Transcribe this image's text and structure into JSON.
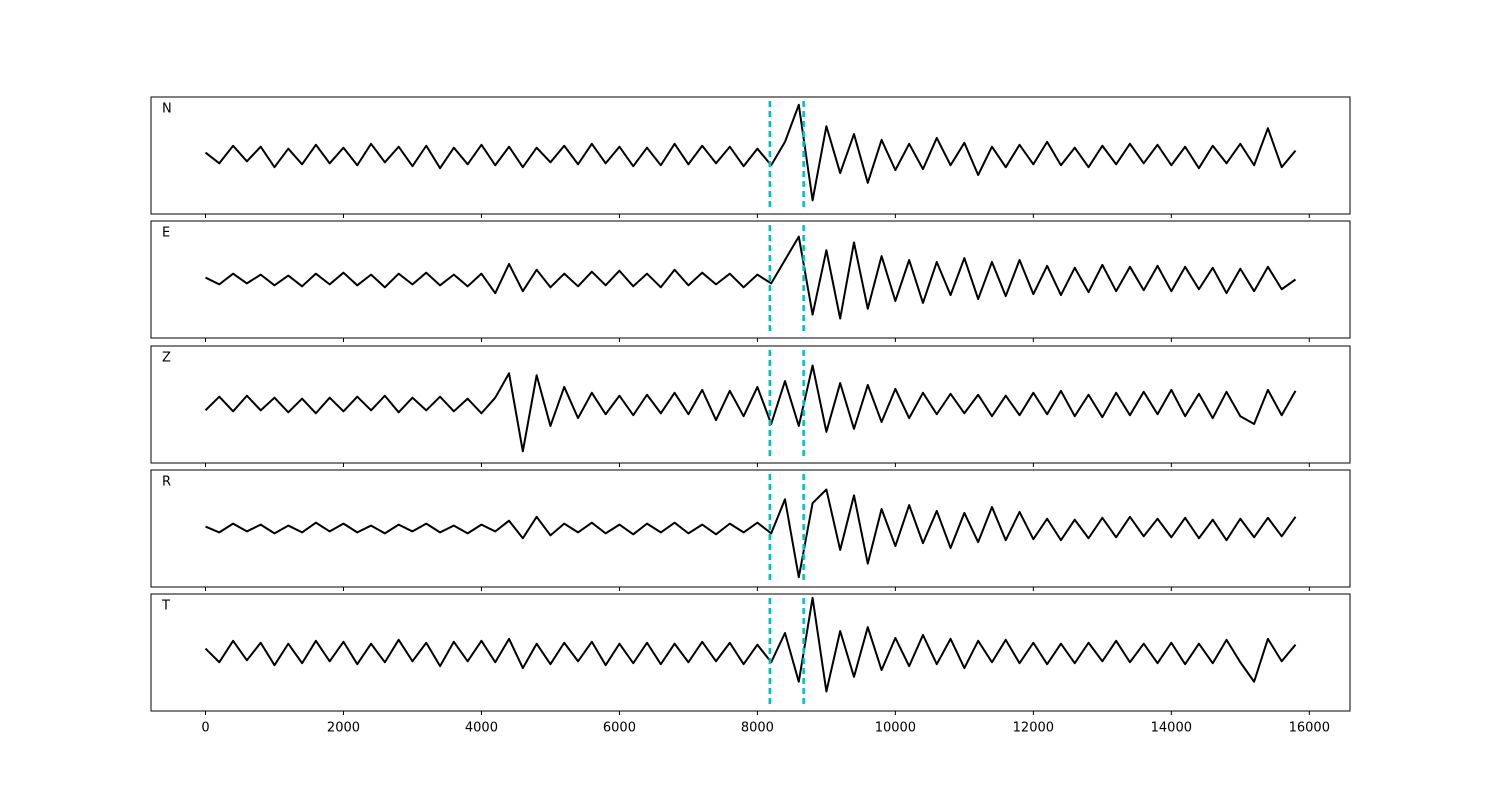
{
  "chart_data": {
    "type": "line",
    "x": [
      0,
      200,
      400,
      600,
      800,
      1000,
      1200,
      1400,
      1600,
      1800,
      2000,
      2200,
      2400,
      2600,
      2800,
      3000,
      3200,
      3400,
      3600,
      3800,
      4000,
      4200,
      4400,
      4600,
      4800,
      5000,
      5200,
      5400,
      5600,
      5800,
      6000,
      6200,
      6400,
      6600,
      6800,
      7000,
      7200,
      7400,
      7600,
      7800,
      8000,
      8200,
      8400,
      8600,
      8800,
      9000,
      9200,
      9400,
      9600,
      9800,
      10000,
      10200,
      10400,
      10600,
      10800,
      11000,
      11200,
      11400,
      11600,
      11800,
      12000,
      12200,
      12400,
      12600,
      12800,
      13000,
      13200,
      13400,
      13600,
      13800,
      14000,
      14200,
      14400,
      14600,
      14800,
      15000,
      15200,
      15400,
      15600,
      15800
    ],
    "xlim": [
      -790,
      16590
    ],
    "xticks": [
      0,
      2000,
      4000,
      6000,
      8000,
      10000,
      12000,
      14000,
      16000
    ],
    "ylim": [
      -60,
      60
    ],
    "series": [
      {
        "name": "N",
        "color": "#000000",
        "values": [
          3,
          -8,
          10,
          -6,
          9,
          -12,
          7,
          -9,
          11,
          -8,
          8,
          -10,
          12,
          -7,
          9,
          -11,
          10,
          -13,
          8,
          -9,
          11,
          -10,
          9,
          -12,
          8,
          -7,
          10,
          -9,
          12,
          -8,
          9,
          -11,
          8,
          -10,
          12,
          -9,
          10,
          -8,
          9,
          -11,
          7,
          -10,
          14,
          52,
          -46,
          30,
          -18,
          22,
          -28,
          16,
          -15,
          12,
          -14,
          18,
          -10,
          13,
          -20,
          9,
          -12,
          11,
          -9,
          14,
          -10,
          8,
          -12,
          10,
          -9,
          12,
          -8,
          11,
          -10,
          9,
          -13,
          10,
          -8,
          12,
          -10,
          28,
          -12,
          5
        ]
      },
      {
        "name": "E",
        "color": "#000000",
        "values": [
          2,
          -5,
          6,
          -4,
          5,
          -6,
          4,
          -7,
          6,
          -5,
          7,
          -6,
          5,
          -8,
          6,
          -5,
          7,
          -6,
          5,
          -7,
          6,
          -14,
          16,
          -12,
          10,
          -8,
          6,
          -7,
          8,
          -6,
          9,
          -7,
          6,
          -8,
          10,
          -6,
          7,
          -5,
          6,
          -8,
          5,
          -4,
          20,
          44,
          -36,
          30,
          -40,
          38,
          -30,
          24,
          -22,
          20,
          -24,
          18,
          -16,
          22,
          -20,
          18,
          -17,
          20,
          -15,
          14,
          -16,
          12,
          -13,
          15,
          -12,
          13,
          -11,
          14,
          -12,
          13,
          -10,
          12,
          -14,
          11,
          -12,
          13,
          -10,
          0
        ]
      },
      {
        "name": "Z",
        "color": "#000000",
        "values": [
          -6,
          8,
          -7,
          9,
          -6,
          7,
          -8,
          6,
          -9,
          7,
          -7,
          8,
          -6,
          9,
          -8,
          7,
          -6,
          8,
          -7,
          6,
          -9,
          7,
          32,
          -48,
          30,
          -22,
          18,
          -14,
          12,
          -10,
          9,
          -11,
          10,
          -9,
          12,
          -10,
          15,
          -16,
          14,
          -12,
          18,
          -20,
          24,
          -22,
          40,
          -28,
          22,
          -25,
          20,
          -18,
          16,
          -14,
          12,
          -10,
          11,
          -9,
          10,
          -12,
          9,
          -11,
          12,
          -10,
          14,
          -12,
          10,
          -13,
          12,
          -11,
          13,
          -10,
          15,
          -12,
          11,
          -14,
          13,
          -12,
          -20,
          15,
          -11,
          14
        ]
      },
      {
        "name": "R",
        "color": "#000000",
        "values": [
          2,
          -4,
          5,
          -3,
          4,
          -5,
          3,
          -4,
          6,
          -3,
          5,
          -4,
          3,
          -5,
          4,
          -3,
          5,
          -4,
          3,
          -5,
          4,
          -3,
          8,
          -10,
          12,
          -7,
          5,
          -4,
          6,
          -5,
          4,
          -6,
          5,
          -4,
          6,
          -5,
          4,
          -6,
          5,
          -4,
          6,
          -5,
          30,
          -50,
          26,
          40,
          -22,
          34,
          -36,
          20,
          -18,
          24,
          -15,
          18,
          -20,
          16,
          -14,
          22,
          -12,
          17,
          -11,
          10,
          -12,
          9,
          -10,
          11,
          -9,
          12,
          -8,
          10,
          -9,
          11,
          -10,
          9,
          -12,
          10,
          -9,
          11,
          -8,
          12
        ]
      },
      {
        "name": "T",
        "color": "#000000",
        "values": [
          4,
          -10,
          12,
          -8,
          10,
          -13,
          9,
          -11,
          12,
          -9,
          11,
          -12,
          9,
          -10,
          13,
          -9,
          10,
          -14,
          11,
          -9,
          12,
          -10,
          14,
          -16,
          9,
          -12,
          10,
          -9,
          11,
          -13,
          9,
          -11,
          10,
          -12,
          9,
          -10,
          11,
          -9,
          10,
          -12,
          8,
          -10,
          20,
          -30,
          56,
          -40,
          22,
          -25,
          26,
          -18,
          15,
          -14,
          18,
          -12,
          14,
          -16,
          12,
          -10,
          13,
          -11,
          10,
          -12,
          9,
          -11,
          10,
          -9,
          12,
          -10,
          9,
          -11,
          10,
          -12,
          9,
          -11,
          13,
          -10,
          -30,
          14,
          -9,
          8
        ]
      }
    ],
    "vlines": {
      "color": "#00bfbf",
      "values": [
        8180,
        8670
      ]
    }
  }
}
